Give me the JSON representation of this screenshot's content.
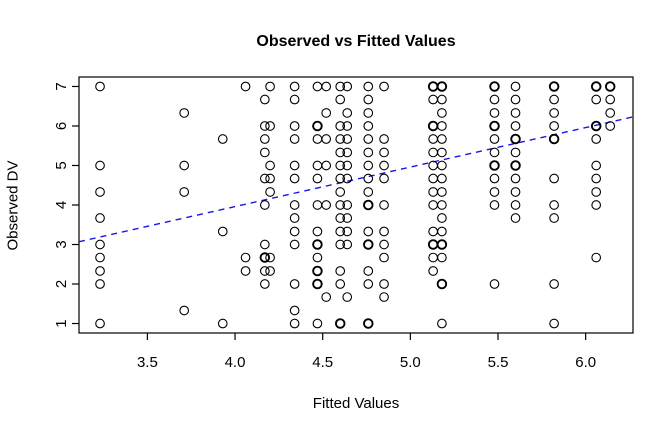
{
  "figure": {
    "title": "Observed vs Fitted Values",
    "xlabel": "Fitted Values",
    "ylabel": "Observed DV"
  },
  "chart_data": {
    "type": "scatter",
    "title": "Observed vs Fitted Values",
    "xlabel": "Fitted Values",
    "ylabel": "Observed DV",
    "xlim": [
      3.11,
      6.27
    ],
    "ylim": [
      0.76,
      7.24
    ],
    "grid": false,
    "legend": null,
    "xticks": {
      "values": [
        3.5,
        4.0,
        4.5,
        5.0,
        5.5,
        6.0
      ],
      "labels": [
        "3.5",
        "4.0",
        "4.5",
        "5.0",
        "5.5",
        "6.0"
      ]
    },
    "yticks": {
      "values": [
        1,
        2,
        3,
        4,
        5,
        6,
        7
      ],
      "labels": [
        "1",
        "2",
        "3",
        "4",
        "5",
        "6",
        "7"
      ]
    },
    "marker": {
      "shape": "open-circle",
      "color": "#000000",
      "radius_px": 4.3
    },
    "fit_line": {
      "style": "dashed",
      "color": "#1717E6",
      "x": [
        3.11,
        6.27
      ],
      "y": [
        3.07,
        6.23
      ]
    },
    "points": [
      [
        3.23,
        7
      ],
      [
        3.23,
        5
      ],
      [
        3.23,
        4.33
      ],
      [
        3.23,
        3.67
      ],
      [
        3.23,
        3
      ],
      [
        3.23,
        2.67
      ],
      [
        3.23,
        2.33
      ],
      [
        3.23,
        2
      ],
      [
        3.23,
        1
      ],
      [
        3.71,
        6.33
      ],
      [
        3.71,
        5
      ],
      [
        3.71,
        4.33
      ],
      [
        3.71,
        1.33
      ],
      [
        3.93,
        5.67
      ],
      [
        3.93,
        3.33
      ],
      [
        3.93,
        1
      ],
      [
        4.06,
        7
      ],
      [
        4.06,
        2.67
      ],
      [
        4.06,
        2.33
      ],
      [
        4.17,
        6.67
      ],
      [
        4.17,
        6
      ],
      [
        4.17,
        5.67
      ],
      [
        4.17,
        5.33
      ],
      [
        4.17,
        4.67
      ],
      [
        4.17,
        4
      ],
      [
        4.17,
        3
      ],
      [
        4.17,
        2.67
      ],
      [
        4.17,
        2.67
      ],
      [
        4.17,
        2.33
      ],
      [
        4.17,
        2
      ],
      [
        4.2,
        7
      ],
      [
        4.2,
        6
      ],
      [
        4.2,
        5
      ],
      [
        4.2,
        4.67
      ],
      [
        4.2,
        4.33
      ],
      [
        4.2,
        2.67
      ],
      [
        4.2,
        2.33
      ],
      [
        4.34,
        7
      ],
      [
        4.34,
        6.67
      ],
      [
        4.34,
        6
      ],
      [
        4.34,
        5.67
      ],
      [
        4.34,
        5
      ],
      [
        4.34,
        4.67
      ],
      [
        4.34,
        4
      ],
      [
        4.34,
        3.67
      ],
      [
        4.34,
        3.33
      ],
      [
        4.34,
        3
      ],
      [
        4.34,
        2
      ],
      [
        4.34,
        1.33
      ],
      [
        4.34,
        1
      ],
      [
        4.47,
        7
      ],
      [
        4.47,
        6
      ],
      [
        4.47,
        6
      ],
      [
        4.47,
        5.67
      ],
      [
        4.47,
        5
      ],
      [
        4.47,
        4.67
      ],
      [
        4.47,
        4
      ],
      [
        4.47,
        3.33
      ],
      [
        4.47,
        3
      ],
      [
        4.47,
        3
      ],
      [
        4.47,
        2.67
      ],
      [
        4.47,
        2.33
      ],
      [
        4.47,
        2.33
      ],
      [
        4.47,
        2
      ],
      [
        4.47,
        2
      ],
      [
        4.47,
        1
      ],
      [
        4.52,
        7
      ],
      [
        4.52,
        6.33
      ],
      [
        4.52,
        5.67
      ],
      [
        4.52,
        5
      ],
      [
        4.52,
        4
      ],
      [
        4.52,
        1.67
      ],
      [
        4.6,
        7
      ],
      [
        4.6,
        6.67
      ],
      [
        4.6,
        6
      ],
      [
        4.6,
        5.67
      ],
      [
        4.6,
        5.33
      ],
      [
        4.6,
        5
      ],
      [
        4.6,
        4.67
      ],
      [
        4.6,
        4.33
      ],
      [
        4.6,
        4
      ],
      [
        4.6,
        3.67
      ],
      [
        4.6,
        3.33
      ],
      [
        4.6,
        3
      ],
      [
        4.6,
        2.33
      ],
      [
        4.6,
        2
      ],
      [
        4.6,
        1
      ],
      [
        4.6,
        1
      ],
      [
        4.64,
        7
      ],
      [
        4.64,
        6.33
      ],
      [
        4.64,
        6
      ],
      [
        4.64,
        5.67
      ],
      [
        4.64,
        5.33
      ],
      [
        4.64,
        5
      ],
      [
        4.64,
        4.67
      ],
      [
        4.64,
        4
      ],
      [
        4.64,
        3.67
      ],
      [
        4.64,
        3.33
      ],
      [
        4.64,
        3
      ],
      [
        4.64,
        1.67
      ],
      [
        4.76,
        7
      ],
      [
        4.76,
        6.67
      ],
      [
        4.76,
        6.33
      ],
      [
        4.76,
        6
      ],
      [
        4.76,
        5.67
      ],
      [
        4.76,
        5.33
      ],
      [
        4.76,
        5
      ],
      [
        4.76,
        4.67
      ],
      [
        4.76,
        4.33
      ],
      [
        4.76,
        4
      ],
      [
        4.76,
        4
      ],
      [
        4.76,
        3.33
      ],
      [
        4.76,
        3
      ],
      [
        4.76,
        3
      ],
      [
        4.76,
        2.33
      ],
      [
        4.76,
        2
      ],
      [
        4.76,
        1
      ],
      [
        4.76,
        1
      ],
      [
        4.85,
        7
      ],
      [
        4.85,
        5.67
      ],
      [
        4.85,
        5.33
      ],
      [
        4.85,
        5
      ],
      [
        4.85,
        4.67
      ],
      [
        4.85,
        4
      ],
      [
        4.85,
        3.33
      ],
      [
        4.85,
        3
      ],
      [
        4.85,
        2.67
      ],
      [
        4.85,
        2
      ],
      [
        4.85,
        1.67
      ],
      [
        5.13,
        7
      ],
      [
        5.13,
        7
      ],
      [
        5.13,
        6.67
      ],
      [
        5.13,
        6
      ],
      [
        5.13,
        6
      ],
      [
        5.13,
        5.67
      ],
      [
        5.13,
        5.33
      ],
      [
        5.13,
        5
      ],
      [
        5.13,
        4.67
      ],
      [
        5.13,
        4.33
      ],
      [
        5.13,
        4
      ],
      [
        5.13,
        3.33
      ],
      [
        5.13,
        3
      ],
      [
        5.13,
        3
      ],
      [
        5.13,
        2.67
      ],
      [
        5.13,
        2.33
      ],
      [
        5.18,
        7
      ],
      [
        5.18,
        7
      ],
      [
        5.18,
        6.67
      ],
      [
        5.18,
        6.33
      ],
      [
        5.18,
        6
      ],
      [
        5.18,
        5.67
      ],
      [
        5.18,
        5.33
      ],
      [
        5.18,
        5
      ],
      [
        5.18,
        4.67
      ],
      [
        5.18,
        4.33
      ],
      [
        5.18,
        4
      ],
      [
        5.18,
        3.67
      ],
      [
        5.18,
        3.33
      ],
      [
        5.18,
        3
      ],
      [
        5.18,
        3
      ],
      [
        5.18,
        2.67
      ],
      [
        5.18,
        2
      ],
      [
        5.18,
        2
      ],
      [
        5.18,
        1
      ],
      [
        5.48,
        7
      ],
      [
        5.48,
        7
      ],
      [
        5.48,
        6.67
      ],
      [
        5.48,
        6.33
      ],
      [
        5.48,
        6
      ],
      [
        5.48,
        6
      ],
      [
        5.48,
        5.67
      ],
      [
        5.48,
        5.33
      ],
      [
        5.48,
        5
      ],
      [
        5.48,
        5
      ],
      [
        5.48,
        4.67
      ],
      [
        5.48,
        4.33
      ],
      [
        5.48,
        4
      ],
      [
        5.48,
        2
      ],
      [
        5.6,
        7
      ],
      [
        5.6,
        6.67
      ],
      [
        5.6,
        6.33
      ],
      [
        5.6,
        6
      ],
      [
        5.6,
        5.67
      ],
      [
        5.6,
        5.67
      ],
      [
        5.6,
        5.33
      ],
      [
        5.6,
        5
      ],
      [
        5.6,
        5
      ],
      [
        5.6,
        4.67
      ],
      [
        5.6,
        4.33
      ],
      [
        5.6,
        4
      ],
      [
        5.6,
        3.67
      ],
      [
        5.82,
        7
      ],
      [
        5.82,
        7
      ],
      [
        5.82,
        6.67
      ],
      [
        5.82,
        6.33
      ],
      [
        5.82,
        6
      ],
      [
        5.82,
        5.67
      ],
      [
        5.82,
        5.67
      ],
      [
        5.82,
        4.67
      ],
      [
        5.82,
        4
      ],
      [
        5.82,
        3.67
      ],
      [
        5.82,
        2
      ],
      [
        5.82,
        1
      ],
      [
        6.06,
        7
      ],
      [
        6.06,
        7
      ],
      [
        6.06,
        6.67
      ],
      [
        6.06,
        6
      ],
      [
        6.06,
        6
      ],
      [
        6.06,
        5.67
      ],
      [
        6.06,
        5
      ],
      [
        6.06,
        4.67
      ],
      [
        6.06,
        4.33
      ],
      [
        6.06,
        4
      ],
      [
        6.06,
        2.67
      ],
      [
        6.14,
        7
      ],
      [
        6.14,
        7
      ],
      [
        6.14,
        6.67
      ],
      [
        6.14,
        6.33
      ],
      [
        6.14,
        6
      ]
    ]
  }
}
